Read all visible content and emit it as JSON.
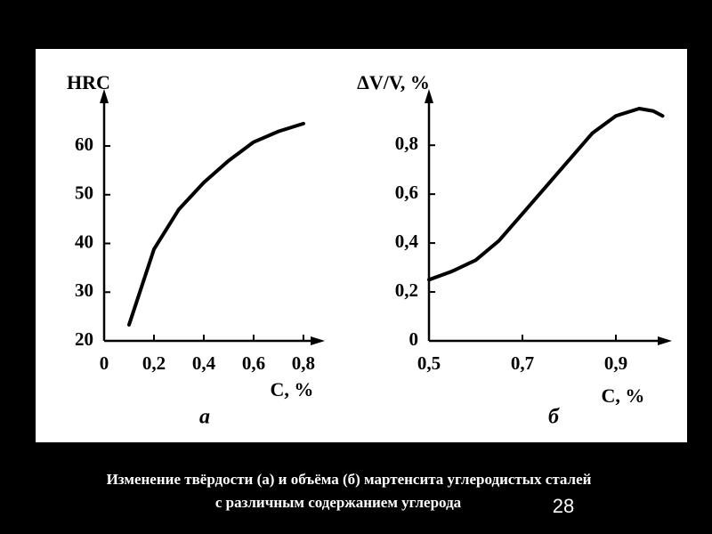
{
  "chart_data": [
    {
      "type": "line",
      "y_label": "HRC",
      "x_label": "C, %",
      "panel_label": "а",
      "x": [
        0.1,
        0.2,
        0.3,
        0.4,
        0.5,
        0.6,
        0.7,
        0.8
      ],
      "values": [
        23.3,
        38.8,
        47,
        52.5,
        57,
        60.8,
        63,
        64.6
      ],
      "color": "#000000",
      "xlim": [
        0,
        0.886
      ],
      "ylim": [
        20,
        71.7
      ],
      "xticks": [
        0,
        {
          "value": 0.2,
          "label": "0,2"
        },
        {
          "value": 0.4,
          "label": "0,4"
        },
        {
          "value": 0.6,
          "label": "0,6"
        },
        {
          "value": 0.8,
          "label": "0,8"
        }
      ],
      "yticks": [
        20,
        30,
        40,
        50,
        60
      ]
    },
    {
      "type": "line",
      "y_label": "ΔV/V, %",
      "x_label": "C, %",
      "panel_label": "б",
      "x": [
        0.5,
        0.55,
        0.6,
        0.65,
        0.7,
        0.75,
        0.8,
        0.85,
        0.9,
        0.95,
        0.98,
        1.0
      ],
      "values": [
        0.25,
        0.285,
        0.33,
        0.41,
        0.52,
        0.63,
        0.74,
        0.85,
        0.92,
        0.95,
        0.94,
        0.92
      ],
      "color": "#000000",
      "xlim": [
        0.5,
        1.02
      ],
      "ylim": [
        0,
        1.03
      ],
      "xticks": [
        {
          "value": 0.5,
          "label": "0,5"
        },
        {
          "value": 0.7,
          "label": "0,7"
        },
        {
          "value": 0.9,
          "label": "0,9"
        }
      ],
      "yticks": [
        0,
        {
          "value": 0.2,
          "label": "0,2"
        },
        {
          "value": 0.4,
          "label": "0,4"
        },
        {
          "value": 0.6,
          "label": "0,6"
        },
        {
          "value": 0.8,
          "label": "0,8"
        }
      ]
    }
  ],
  "caption": [
    "Изменение твёрдости (а) и объёма (б) мартенсита углеродистых сталей",
    "с различным содержанием углерода"
  ],
  "page_number": "28"
}
